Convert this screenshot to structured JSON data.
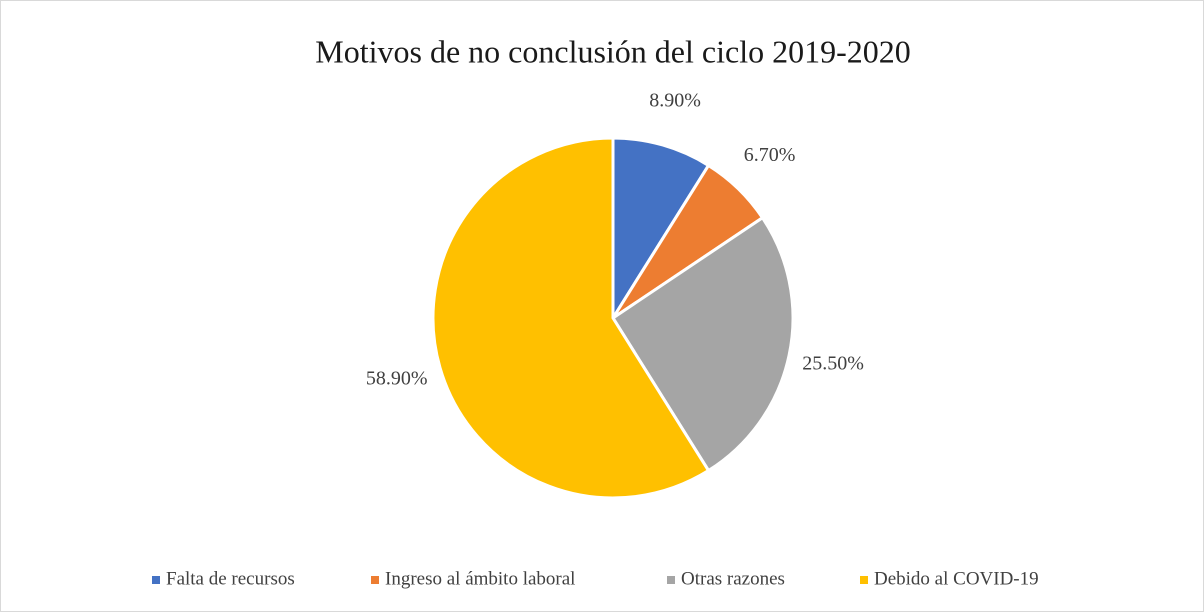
{
  "chart_data": {
    "type": "pie",
    "title": "Motivos de no conclusión del ciclo 2019-2020",
    "categories": [
      "Falta de recursos",
      "Ingreso al ámbito laboral",
      "Otras razones",
      "Debido al COVID-19"
    ],
    "values": [
      8.9,
      6.7,
      25.5,
      58.9
    ],
    "value_labels": [
      "8.90%",
      "6.70%",
      "25.50%",
      "58.90%"
    ],
    "colors": [
      "#4472c4",
      "#ed7d31",
      "#a5a5a5",
      "#ffc000"
    ],
    "legend": "bottom"
  }
}
